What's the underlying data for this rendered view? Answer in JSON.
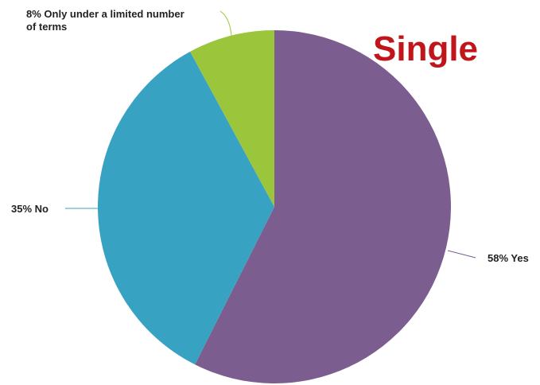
{
  "title": "Single",
  "colors": {
    "title": "#c0161b",
    "leader_line_default": "#444444"
  },
  "chart_data": {
    "type": "pie",
    "title": "Single",
    "start_angle_deg": 0,
    "direction": "clockwise",
    "slices": [
      {
        "label": "Yes",
        "value": 58,
        "display": "58% Yes",
        "color": "#7b5e8f"
      },
      {
        "label": "No",
        "value": 35,
        "display": "35% No",
        "color": "#38a2c3"
      },
      {
        "label": "Only under a limited number of terms",
        "value": 8,
        "display_lines": [
          "8% Only under a limited number",
          "of terms"
        ],
        "color": "#9bc63c"
      }
    ]
  }
}
